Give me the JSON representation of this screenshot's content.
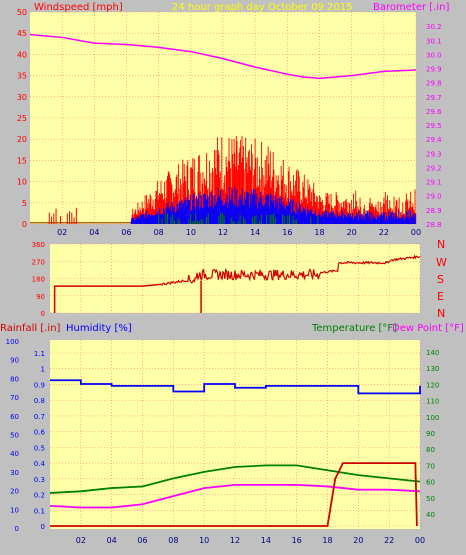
{
  "header": {
    "left_label": "Windspeed [mph]",
    "center_label": "24 hour graph day    October 09 2015",
    "right_label": "Barometer [.in]"
  },
  "lower_header": {
    "rain_label": "Rainfall [.in]",
    "humidity_label": "Humidity [%]",
    "temp_label": "Temperature [°F]",
    "dew_label": "Dew Point [°F]"
  },
  "colors": {
    "plot_bg": "#ffffa8",
    "grid": "#ff8080",
    "wind": "#ff0000",
    "gust_alt": "#0000ff",
    "avg": "#008000",
    "barometer": "#ff00ff",
    "direction": "#d00000",
    "rain": "#d00000",
    "humidity": "#0000ff",
    "temperature": "#008000",
    "dewpoint": "#ff00ff",
    "compass": "#ff0000",
    "frame_bg": "#c0c0c0"
  },
  "compass_labels": [
    "N",
    "W",
    "S",
    "E",
    "N"
  ],
  "chart_data": [
    {
      "type": "line",
      "title": "24 hour graph day    October 09 2015",
      "x_ticks": [
        "02",
        "04",
        "06",
        "08",
        "10",
        "12",
        "14",
        "16",
        "18",
        "20",
        "22",
        "00"
      ],
      "y_left_label": "Windspeed [mph]",
      "y_left_ticks": [
        0,
        5,
        10,
        15,
        20,
        25,
        30,
        35,
        40,
        45,
        50
      ],
      "y_left_range": [
        0,
        50
      ],
      "y_right_label": "Barometer [.in]",
      "y_right_ticks": [
        28.8,
        28.9,
        29.0,
        29.1,
        29.2,
        29.3,
        29.4,
        29.5,
        29.6,
        29.7,
        29.8,
        29.9,
        30.0,
        30.1,
        30.2
      ],
      "y_right_range": [
        28.8,
        30.3
      ],
      "grid": true,
      "series": [
        {
          "name": "Barometer",
          "axis": "right",
          "x": [
            0,
            2,
            4,
            6,
            8,
            10,
            12,
            14,
            16,
            17,
            18,
            20,
            22,
            24
          ],
          "values": [
            30.14,
            30.12,
            30.08,
            30.07,
            30.05,
            30.02,
            29.97,
            29.91,
            29.86,
            29.84,
            29.83,
            29.85,
            29.88,
            29.89
          ]
        }
      ]
    },
    {
      "type": "line",
      "x_ticks": [
        "02",
        "04",
        "06",
        "08",
        "10",
        "12",
        "14",
        "16",
        "18",
        "20",
        "22",
        "00"
      ],
      "y_ticks": [
        0,
        90,
        180,
        270,
        360
      ],
      "y_range": [
        0,
        360
      ],
      "series": [
        {
          "name": "Wind direction",
          "x": [
            0.3,
            6,
            8,
            10,
            12,
            14,
            16,
            18,
            20,
            22,
            24
          ],
          "values": [
            0,
            140,
            160,
            190,
            200,
            195,
            205,
            215,
            255,
            270,
            300
          ]
        }
      ]
    },
    {
      "type": "line",
      "x_ticks": [
        "02",
        "04",
        "06",
        "08",
        "10",
        "12",
        "14",
        "16",
        "18",
        "20",
        "22",
        "00"
      ],
      "y_left_label": "Rainfall [.in]",
      "y_left_ticks": [
        0,
        0.1,
        0.2,
        0.3,
        0.4,
        0.5,
        0.6,
        0.7,
        0.8,
        0.9,
        1,
        1.1
      ],
      "y_humidity_label": "Humidity [%]",
      "y_humidity_ticks": [
        0,
        10,
        20,
        30,
        40,
        50,
        60,
        70,
        80,
        90,
        100
      ],
      "y_right_label": "Temperature [°F]",
      "y_right_ticks": [
        40,
        50,
        60,
        70,
        80,
        90,
        100,
        110,
        120,
        130,
        140
      ],
      "series": [
        {
          "name": "Humidity",
          "axis": "humidity",
          "x": [
            0,
            2,
            4,
            6,
            8,
            9,
            10,
            12,
            14,
            16,
            18,
            20,
            22,
            24
          ],
          "values": [
            79,
            77,
            76,
            76,
            73,
            73,
            77,
            75,
            76,
            76,
            76,
            72,
            72,
            76
          ]
        },
        {
          "name": "Temperature",
          "axis": "right",
          "x": [
            0,
            2,
            4,
            6,
            8,
            10,
            12,
            14,
            16,
            18,
            20,
            22,
            24
          ],
          "values": [
            53,
            54,
            56,
            57,
            62,
            66,
            69,
            70,
            70,
            67,
            64,
            62,
            60
          ]
        },
        {
          "name": "Dew Point",
          "axis": "right",
          "x": [
            0,
            2,
            4,
            6,
            8,
            10,
            12,
            14,
            16,
            18,
            20,
            22,
            24
          ],
          "values": [
            45,
            44,
            44,
            46,
            51,
            56,
            58,
            58,
            58,
            57,
            55,
            55,
            54
          ]
        },
        {
          "name": "Rainfall",
          "axis": "left",
          "x": [
            0,
            18,
            18.5,
            19,
            20,
            22,
            23.7,
            23.8
          ],
          "values": [
            0,
            0,
            0.3,
            0.4,
            0.4,
            0.4,
            0.4,
            0
          ]
        }
      ]
    }
  ]
}
